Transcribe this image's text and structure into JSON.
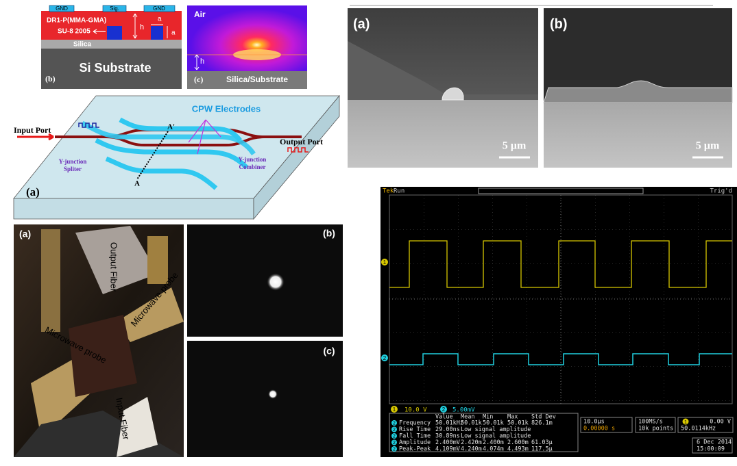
{
  "cross_section": {
    "electrodes": [
      "GND",
      "Sig.",
      "GND"
    ],
    "cladding": "DR1-P(MMA-GMA)",
    "core": "SU-8 2005",
    "height": "h",
    "width_top": "a",
    "width_side": "a",
    "silica": "Silica",
    "substrate": "Si Substrate",
    "panel": "(b)"
  },
  "mode_profile": {
    "air": "Air",
    "height": "h",
    "panel": "(c)",
    "substrate": "Silica/Substrate"
  },
  "schematic": {
    "electrodes": "CPW Electrodes",
    "a_prime": "A'",
    "a": "A",
    "input": "Input Port",
    "output": "Output Port",
    "splitter": [
      "Y-junction",
      "Spliter"
    ],
    "combiner": [
      "Y-junction",
      "Combiner"
    ],
    "panel": "(a)"
  },
  "sem": [
    {
      "panel": "(a)",
      "scale": "5 µm"
    },
    {
      "panel": "(b)",
      "scale": "5 µm"
    }
  ],
  "photo": {
    "panel": "(a)",
    "output_fiber": "Output Fiber",
    "probe_right": "Microwave probe",
    "probe_left": "Microwave probe",
    "input_fiber": "Input Fiber"
  },
  "output_modes": [
    {
      "panel": "(b)"
    },
    {
      "panel": "(c)"
    }
  ],
  "scope": {
    "brand": "Tek",
    "state": "Run",
    "trigger": "Trig'd",
    "channels": [
      {
        "id": "1",
        "scale": "10.0 V"
      },
      {
        "id": "2",
        "scale": "5.00mV"
      }
    ],
    "table": {
      "header": [
        "Value",
        "Mean",
        "Min",
        "Max",
        "Std Dev"
      ],
      "rows": [
        [
          "2",
          "Frequency",
          "50.01kHz",
          "50.01k",
          "50.01k",
          "50.01k",
          "826.1m"
        ],
        [
          "2",
          "Rise Time",
          "29.00ns",
          "Low signal amplitude"
        ],
        [
          "2",
          "Fall Time",
          "30.89ns",
          "Low signal amplitude"
        ],
        [
          "2",
          "Amplitude",
          "2.400mV",
          "2.420m",
          "2.400m",
          "2.600m",
          "61.03µ"
        ],
        [
          "2",
          "Peak-Peak",
          "4.109mV",
          "4.240m",
          "4.074m",
          "4.493m",
          "117.5µ"
        ]
      ]
    },
    "timebase": "10.0µs",
    "delay": "0.00000 s",
    "sample_rate": "100MS/s",
    "record": "10k points",
    "trigger_level": "0.00 V",
    "trigger_freq": "50.0114kHz",
    "date": "6 Dec 2014",
    "time": "15:00:09"
  }
}
